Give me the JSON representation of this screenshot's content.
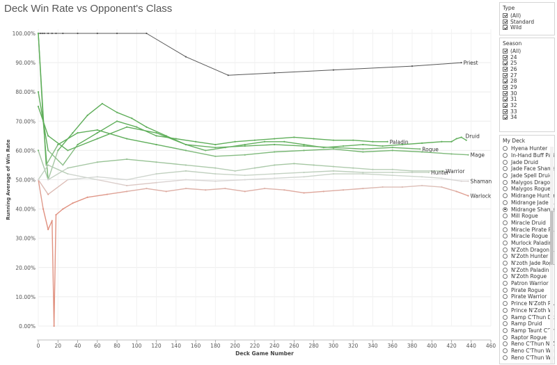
{
  "title": "Deck Win Rate vs Opponent's Class",
  "chart_data": {
    "type": "line",
    "xlabel": "Deck Game Number",
    "ylabel": "Running Average of Win Rate",
    "xlim": [
      0,
      460
    ],
    "ylim": [
      0,
      100
    ],
    "xticks": [
      0,
      20,
      40,
      60,
      80,
      100,
      120,
      140,
      160,
      180,
      200,
      220,
      240,
      260,
      280,
      300,
      320,
      340,
      360,
      380,
      400,
      420,
      440,
      460
    ],
    "yticks": [
      0,
      10,
      20,
      30,
      40,
      50,
      60,
      70,
      80,
      90,
      100
    ],
    "ytick_labels": [
      "0.00%",
      "10.00%",
      "20.00%",
      "30.00%",
      "40.00%",
      "50.00%",
      "60.00%",
      "70.00%",
      "80.00%",
      "90.00%",
      "100.00%"
    ],
    "grid": true,
    "colors": {
      "high": "#5fae5a",
      "mid": "#d9d9d9",
      "low": "#e0907f",
      "priest": "#555555"
    },
    "series": [
      {
        "name": "Priest",
        "label_at": [
          430,
          90
        ],
        "x": [
          0,
          2,
          4,
          6,
          10,
          14,
          18,
          25,
          40,
          60,
          80,
          110,
          150,
          193,
          240,
          300,
          380,
          430
        ],
        "y": [
          100,
          100,
          100,
          100,
          100,
          100,
          100,
          100,
          100,
          100,
          100,
          100,
          92,
          85.7,
          86.5,
          87.5,
          88.8,
          90
        ]
      },
      {
        "name": "Druid",
        "label_at": [
          432,
          65
        ],
        "x": [
          0,
          5,
          10,
          20,
          35,
          50,
          65,
          80,
          95,
          110,
          130,
          150,
          170,
          190,
          210,
          230,
          250,
          270,
          290,
          310,
          330,
          350,
          370,
          390,
          410,
          420,
          425,
          430,
          435
        ],
        "y": [
          100,
          70,
          50,
          60,
          66,
          72,
          76,
          73,
          71,
          68,
          65,
          62,
          60,
          61,
          62,
          63,
          63,
          62,
          61,
          61.5,
          62,
          61.5,
          62,
          62.5,
          63,
          63,
          64,
          64.5,
          63.5
        ]
      },
      {
        "name": "Paladin",
        "label_at": [
          355,
          63
        ],
        "x": [
          0,
          10,
          25,
          40,
          60,
          80,
          100,
          120,
          140,
          160,
          180,
          200,
          220,
          240,
          260,
          280,
          300,
          320,
          340,
          355
        ],
        "y": [
          80,
          60,
          55,
          62,
          66,
          70,
          68,
          65,
          64,
          63,
          62,
          63,
          63.5,
          64,
          64.5,
          64,
          63.5,
          63.5,
          63,
          63
        ]
      },
      {
        "name": "Rogue",
        "label_at": [
          388,
          60.5
        ],
        "x": [
          0,
          10,
          30,
          60,
          90,
          120,
          150,
          180,
          210,
          240,
          270,
          300,
          330,
          360,
          388
        ],
        "y": [
          75,
          65,
          60,
          64,
          68,
          66,
          62,
          61,
          61.5,
          62,
          61.5,
          61,
          60.5,
          61,
          60.5
        ]
      },
      {
        "name": "Mage",
        "label_at": [
          437,
          58.5
        ],
        "x": [
          0,
          8,
          20,
          40,
          60,
          90,
          120,
          150,
          180,
          210,
          240,
          270,
          300,
          330,
          360,
          390,
          420,
          437
        ],
        "y": [
          100,
          55,
          62,
          66,
          67,
          64,
          62,
          60,
          58,
          58.5,
          59.5,
          60,
          60.5,
          59.5,
          60,
          59.5,
          58.8,
          58.5
        ]
      },
      {
        "name": "Warrior",
        "label_at": [
          412,
          53
        ],
        "x": [
          0,
          10,
          30,
          60,
          90,
          120,
          150,
          180,
          200,
          220,
          240,
          260,
          280,
          300,
          320,
          340,
          360,
          380,
          400,
          412
        ],
        "y": [
          60,
          50,
          54,
          56,
          57,
          56,
          55,
          54,
          53,
          54,
          55,
          55.5,
          55,
          54.5,
          54,
          53.5,
          53.5,
          53,
          53,
          53
        ]
      },
      {
        "name": "Hunter",
        "label_at": [
          397,
          52.5
        ],
        "x": [
          0,
          10,
          30,
          60,
          90,
          120,
          150,
          180,
          210,
          240,
          270,
          300,
          330,
          360,
          380,
          397
        ],
        "y": [
          50,
          45,
          50,
          51,
          50,
          52,
          53,
          52,
          51.5,
          52,
          52.5,
          53,
          52.5,
          52.5,
          52.5,
          52.5
        ]
      },
      {
        "name": "Shaman",
        "label_at": [
          437,
          49.5
        ],
        "x": [
          0,
          10,
          30,
          60,
          90,
          120,
          150,
          180,
          210,
          240,
          270,
          300,
          330,
          360,
          390,
          410,
          420,
          430,
          437
        ],
        "y": [
          50,
          55,
          52,
          50,
          48,
          49,
          50,
          49.5,
          50,
          50.5,
          51,
          52,
          52,
          51.5,
          51,
          50.5,
          50,
          49.5,
          49.5
        ]
      },
      {
        "name": "Warlock",
        "label_at": [
          437,
          44.5
        ],
        "x": [
          0,
          5,
          10,
          14,
          16,
          18,
          25,
          35,
          50,
          70,
          90,
          110,
          130,
          150,
          170,
          190,
          210,
          230,
          250,
          270,
          290,
          310,
          330,
          350,
          370,
          390,
          410,
          425,
          437
        ],
        "y": [
          50,
          40,
          33,
          36,
          0,
          38,
          40,
          42,
          44,
          45,
          46,
          47,
          46,
          47,
          46.5,
          47,
          46,
          47,
          46.5,
          45.5,
          46,
          46.5,
          47,
          47.5,
          47.5,
          48,
          47.5,
          46,
          44.5
        ]
      }
    ]
  },
  "filters": {
    "type": {
      "title": "Type",
      "options": [
        "(All)",
        "Standard",
        "Wild"
      ]
    },
    "season": {
      "title": "Season",
      "options": [
        "(All)",
        "24",
        "25",
        "26",
        "27",
        "28",
        "29",
        "30",
        "31",
        "32",
        "33",
        "34"
      ]
    },
    "deck": {
      "title": "My Deck",
      "selected": "Midrange Shaman",
      "options": [
        "Hyena Hunter",
        "In-Hand Buff Pali",
        "Jade Druid",
        "Jade Face Shaman",
        "Jade Spell Druid",
        "Malygos Dragon ...",
        "Malygos Rogue",
        "Midrange Hunter",
        "Midrange Jade S...",
        "Midrange Shaman",
        "Mill Rogue",
        "Miracle Druid",
        "Miracle Pirate R...",
        "Miracle Rogue",
        "Murlock Paladin",
        "N'Zoth Dragon ...",
        "N'Zoth Hunter",
        "N'zoth Jade Rogue",
        "N'Zoth Paladin",
        "N'Zoth Rogue",
        "Patron Warrior",
        "Pirate Rogue",
        "Pirate Warrior",
        "Prince N'Zoth R...",
        "Prince N'Zoth W...",
        "Ramp C'Thun Dr...",
        "Ramp Druid",
        "Ramp Taunt C'Th...",
        "Raptor Rogue",
        "Reno C'Thun N'Z...",
        "Reno C'Thun War...",
        "Reno C'Thun War..."
      ]
    }
  }
}
